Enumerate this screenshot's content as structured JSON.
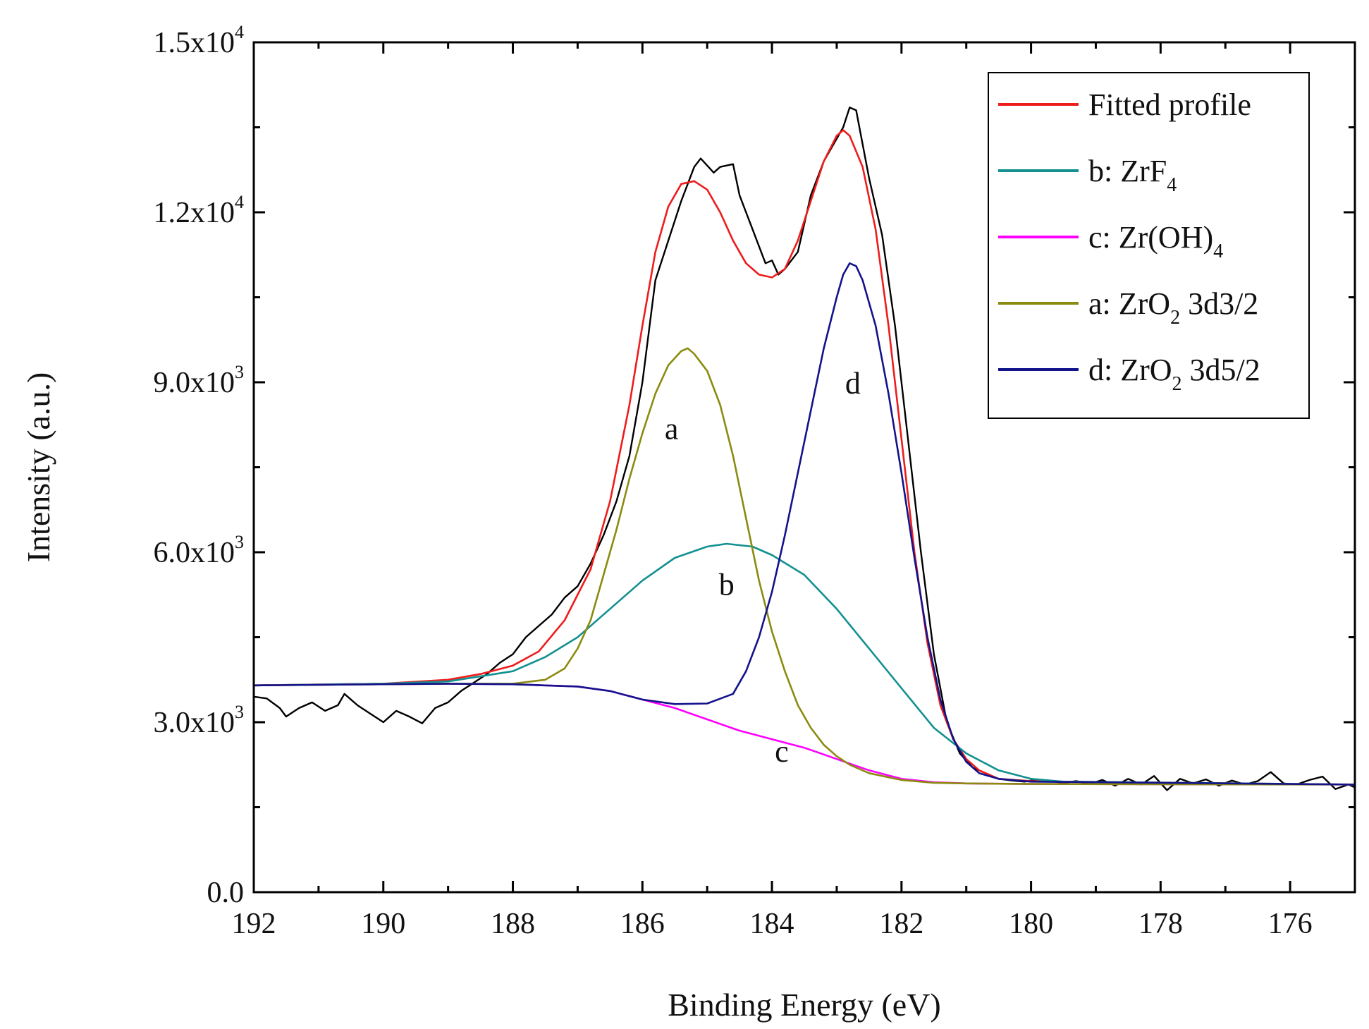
{
  "chart_data": {
    "type": "line",
    "title": "",
    "xlabel": "Binding Energy (eV)",
    "ylabel": "Intensity (a.u.)",
    "xlim": [
      192,
      175
    ],
    "ylim": [
      0,
      15000
    ],
    "x_ticks": [
      192,
      190,
      188,
      186,
      184,
      182,
      180,
      178,
      176
    ],
    "x_tick_labels": [
      "192",
      "190",
      "188",
      "186",
      "184",
      "182",
      "180",
      "178",
      "176"
    ],
    "y_ticks": [
      0,
      3000,
      6000,
      9000,
      12000,
      15000
    ],
    "y_tick_labels": [
      {
        "base": "0.0",
        "exp": ""
      },
      {
        "base": "3.0x10",
        "exp": "3"
      },
      {
        "base": "6.0x10",
        "exp": "3"
      },
      {
        "base": "9.0x10",
        "exp": "3"
      },
      {
        "base": "1.2x10",
        "exp": "4"
      },
      {
        "base": "1.5x10",
        "exp": "4"
      }
    ],
    "legend_position": "top-right",
    "legend": [
      {
        "key": "fit",
        "color": "#ee1c1c",
        "parts": [
          {
            "t": "Fitted profile"
          }
        ]
      },
      {
        "key": "b",
        "color": "#139090",
        "parts": [
          {
            "t": "b: ZrF"
          },
          {
            "t": "4",
            "sub": true
          }
        ]
      },
      {
        "key": "c",
        "color": "#ff00ff",
        "parts": [
          {
            "t": "c: Zr(OH)"
          },
          {
            "t": "4",
            "sub": true
          }
        ]
      },
      {
        "key": "a",
        "color": "#8b8b10",
        "parts": [
          {
            "t": "a: ZrO"
          },
          {
            "t": "2",
            "sub": true
          },
          {
            "t": " 3d3/2"
          }
        ]
      },
      {
        "key": "d",
        "color": "#13138b",
        "parts": [
          {
            "t": "d: ZrO"
          },
          {
            "t": "2",
            "sub": true
          },
          {
            "t": " 3d5/2"
          }
        ]
      }
    ],
    "annotations": [
      {
        "text": "a",
        "x": 185.55,
        "y": 8000
      },
      {
        "text": "b",
        "x": 184.7,
        "y": 5250
      },
      {
        "text": "c",
        "x": 183.85,
        "y": 2300
      },
      {
        "text": "d",
        "x": 182.75,
        "y": 8800
      }
    ],
    "series": [
      {
        "name": "Experimental",
        "color": "#000000",
        "points": [
          [
            192.0,
            3450
          ],
          [
            191.8,
            3420
          ],
          [
            191.6,
            3250
          ],
          [
            191.5,
            3100
          ],
          [
            191.3,
            3250
          ],
          [
            191.1,
            3350
          ],
          [
            190.9,
            3200
          ],
          [
            190.7,
            3300
          ],
          [
            190.6,
            3500
          ],
          [
            190.4,
            3300
          ],
          [
            190.2,
            3150
          ],
          [
            190.0,
            3000
          ],
          [
            189.8,
            3200
          ],
          [
            189.6,
            3100
          ],
          [
            189.4,
            2980
          ],
          [
            189.2,
            3250
          ],
          [
            189.0,
            3350
          ],
          [
            188.8,
            3550
          ],
          [
            188.6,
            3700
          ],
          [
            188.4,
            3850
          ],
          [
            188.2,
            4050
          ],
          [
            188.0,
            4200
          ],
          [
            187.8,
            4500
          ],
          [
            187.6,
            4700
          ],
          [
            187.4,
            4900
          ],
          [
            187.2,
            5200
          ],
          [
            187.0,
            5400
          ],
          [
            186.8,
            5800
          ],
          [
            186.6,
            6300
          ],
          [
            186.4,
            6900
          ],
          [
            186.2,
            7700
          ],
          [
            186.0,
            9000
          ],
          [
            185.8,
            10800
          ],
          [
            185.6,
            11500
          ],
          [
            185.4,
            12200
          ],
          [
            185.2,
            12800
          ],
          [
            185.1,
            12950
          ],
          [
            184.9,
            12700
          ],
          [
            184.8,
            12800
          ],
          [
            184.6,
            12850
          ],
          [
            184.5,
            12300
          ],
          [
            184.3,
            11700
          ],
          [
            184.1,
            11100
          ],
          [
            184.0,
            11150
          ],
          [
            183.9,
            10900
          ],
          [
            183.8,
            11000
          ],
          [
            183.6,
            11300
          ],
          [
            183.4,
            12300
          ],
          [
            183.2,
            12900
          ],
          [
            183.0,
            13300
          ],
          [
            182.9,
            13500
          ],
          [
            182.8,
            13850
          ],
          [
            182.7,
            13800
          ],
          [
            182.6,
            13200
          ],
          [
            182.5,
            12600
          ],
          [
            182.3,
            11600
          ],
          [
            182.1,
            10000
          ],
          [
            181.9,
            8000
          ],
          [
            181.7,
            6000
          ],
          [
            181.5,
            4200
          ],
          [
            181.3,
            3000
          ],
          [
            181.1,
            2450
          ],
          [
            180.9,
            2200
          ],
          [
            180.7,
            2100
          ],
          [
            180.5,
            2000
          ],
          [
            180.3,
            1970
          ],
          [
            180.1,
            1950
          ],
          [
            179.9,
            1990
          ],
          [
            179.7,
            1960
          ],
          [
            179.5,
            1930
          ],
          [
            179.3,
            1960
          ],
          [
            179.1,
            1910
          ],
          [
            178.9,
            1980
          ],
          [
            178.7,
            1880
          ],
          [
            178.5,
            2000
          ],
          [
            178.3,
            1900
          ],
          [
            178.1,
            2050
          ],
          [
            177.9,
            1800
          ],
          [
            177.7,
            2000
          ],
          [
            177.5,
            1920
          ],
          [
            177.3,
            1990
          ],
          [
            177.1,
            1880
          ],
          [
            176.9,
            1970
          ],
          [
            176.7,
            1900
          ],
          [
            176.5,
            1960
          ],
          [
            176.3,
            2120
          ],
          [
            176.1,
            1920
          ],
          [
            175.9,
            1900
          ],
          [
            175.7,
            1980
          ],
          [
            175.5,
            2040
          ],
          [
            175.3,
            1820
          ],
          [
            175.1,
            1900
          ],
          [
            175.0,
            1850
          ]
        ]
      },
      {
        "name": "Fitted profile",
        "color": "#ee1c1c",
        "points": [
          [
            192.0,
            3650
          ],
          [
            190.0,
            3680
          ],
          [
            189.0,
            3750
          ],
          [
            188.5,
            3850
          ],
          [
            188.0,
            4000
          ],
          [
            187.6,
            4250
          ],
          [
            187.2,
            4800
          ],
          [
            186.8,
            5700
          ],
          [
            186.5,
            6900
          ],
          [
            186.2,
            8600
          ],
          [
            186.0,
            10000
          ],
          [
            185.8,
            11300
          ],
          [
            185.6,
            12100
          ],
          [
            185.4,
            12500
          ],
          [
            185.2,
            12550
          ],
          [
            185.0,
            12400
          ],
          [
            184.8,
            12000
          ],
          [
            184.6,
            11500
          ],
          [
            184.4,
            11100
          ],
          [
            184.2,
            10900
          ],
          [
            184.0,
            10850
          ],
          [
            183.8,
            11000
          ],
          [
            183.6,
            11500
          ],
          [
            183.4,
            12200
          ],
          [
            183.2,
            12900
          ],
          [
            183.0,
            13350
          ],
          [
            182.9,
            13450
          ],
          [
            182.8,
            13350
          ],
          [
            182.6,
            12800
          ],
          [
            182.4,
            11700
          ],
          [
            182.2,
            10000
          ],
          [
            182.0,
            8000
          ],
          [
            181.8,
            6000
          ],
          [
            181.6,
            4400
          ],
          [
            181.4,
            3300
          ],
          [
            181.2,
            2700
          ],
          [
            181.0,
            2350
          ],
          [
            180.8,
            2150
          ],
          [
            180.5,
            2000
          ],
          [
            180.0,
            1960
          ],
          [
            179.5,
            1950
          ],
          [
            175.0,
            1900
          ]
        ]
      },
      {
        "name": "b: ZrF4",
        "color": "#139090",
        "points": [
          [
            192.0,
            3650
          ],
          [
            190.0,
            3680
          ],
          [
            189.0,
            3720
          ],
          [
            188.0,
            3900
          ],
          [
            187.5,
            4150
          ],
          [
            187.0,
            4500
          ],
          [
            186.5,
            5000
          ],
          [
            186.0,
            5500
          ],
          [
            185.5,
            5900
          ],
          [
            185.0,
            6100
          ],
          [
            184.7,
            6150
          ],
          [
            184.3,
            6100
          ],
          [
            184.0,
            5950
          ],
          [
            183.5,
            5600
          ],
          [
            183.0,
            5000
          ],
          [
            182.5,
            4300
          ],
          [
            182.0,
            3600
          ],
          [
            181.5,
            2900
          ],
          [
            181.0,
            2450
          ],
          [
            180.5,
            2150
          ],
          [
            180.0,
            2000
          ],
          [
            179.5,
            1950
          ],
          [
            175.0,
            1900
          ]
        ]
      },
      {
        "name": "c: Zr(OH)4",
        "color": "#ff00ff",
        "points": [
          [
            192.0,
            3650
          ],
          [
            189.0,
            3680
          ],
          [
            188.0,
            3670
          ],
          [
            187.0,
            3630
          ],
          [
            186.5,
            3550
          ],
          [
            186.0,
            3400
          ],
          [
            185.5,
            3250
          ],
          [
            185.0,
            3050
          ],
          [
            184.5,
            2850
          ],
          [
            184.0,
            2700
          ],
          [
            183.5,
            2550
          ],
          [
            183.0,
            2350
          ],
          [
            182.5,
            2150
          ],
          [
            182.0,
            2000
          ],
          [
            181.5,
            1940
          ],
          [
            181.0,
            1920
          ],
          [
            180.0,
            1910
          ],
          [
            175.0,
            1900
          ]
        ]
      },
      {
        "name": "a: ZrO2 3d3/2",
        "color": "#8b8b10",
        "points": [
          [
            192.0,
            3650
          ],
          [
            189.0,
            3680
          ],
          [
            188.0,
            3680
          ],
          [
            187.5,
            3750
          ],
          [
            187.2,
            3950
          ],
          [
            187.0,
            4300
          ],
          [
            186.8,
            4800
          ],
          [
            186.6,
            5600
          ],
          [
            186.4,
            6400
          ],
          [
            186.2,
            7300
          ],
          [
            186.0,
            8100
          ],
          [
            185.8,
            8800
          ],
          [
            185.6,
            9300
          ],
          [
            185.4,
            9550
          ],
          [
            185.3,
            9600
          ],
          [
            185.2,
            9500
          ],
          [
            185.0,
            9200
          ],
          [
            184.8,
            8600
          ],
          [
            184.6,
            7700
          ],
          [
            184.4,
            6600
          ],
          [
            184.2,
            5500
          ],
          [
            184.0,
            4600
          ],
          [
            183.8,
            3900
          ],
          [
            183.6,
            3300
          ],
          [
            183.4,
            2900
          ],
          [
            183.2,
            2600
          ],
          [
            183.0,
            2400
          ],
          [
            182.8,
            2250
          ],
          [
            182.5,
            2100
          ],
          [
            182.0,
            1980
          ],
          [
            181.5,
            1930
          ],
          [
            181.0,
            1920
          ],
          [
            180.0,
            1910
          ],
          [
            175.0,
            1900
          ]
        ]
      },
      {
        "name": "d: ZrO2 3d5/2",
        "color": "#13138b",
        "points": [
          [
            192.0,
            3650
          ],
          [
            189.0,
            3680
          ],
          [
            188.0,
            3670
          ],
          [
            187.0,
            3630
          ],
          [
            186.5,
            3550
          ],
          [
            186.0,
            3400
          ],
          [
            185.5,
            3320
          ],
          [
            185.0,
            3330
          ],
          [
            184.6,
            3500
          ],
          [
            184.4,
            3900
          ],
          [
            184.2,
            4500
          ],
          [
            184.0,
            5300
          ],
          [
            183.8,
            6300
          ],
          [
            183.6,
            7400
          ],
          [
            183.4,
            8500
          ],
          [
            183.2,
            9600
          ],
          [
            183.0,
            10500
          ],
          [
            182.9,
            10900
          ],
          [
            182.8,
            11100
          ],
          [
            182.7,
            11050
          ],
          [
            182.6,
            10800
          ],
          [
            182.4,
            10000
          ],
          [
            182.2,
            8800
          ],
          [
            182.0,
            7400
          ],
          [
            181.8,
            5900
          ],
          [
            181.6,
            4500
          ],
          [
            181.4,
            3400
          ],
          [
            181.2,
            2700
          ],
          [
            181.0,
            2300
          ],
          [
            180.8,
            2100
          ],
          [
            180.5,
            2000
          ],
          [
            180.0,
            1950
          ],
          [
            175.0,
            1900
          ]
        ]
      }
    ]
  }
}
